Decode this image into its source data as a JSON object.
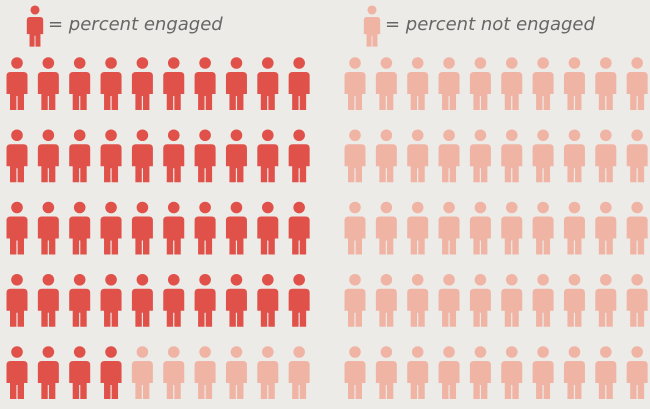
{
  "chart_data": {
    "type": "pictograph",
    "series": [
      {
        "name": "= percent engaged",
        "color": "#e0514a",
        "values": [
          44
        ]
      },
      {
        "name": "= percent not engaged",
        "color": "#f0b4a4",
        "values": [
          56
        ]
      }
    ]
  }
}
